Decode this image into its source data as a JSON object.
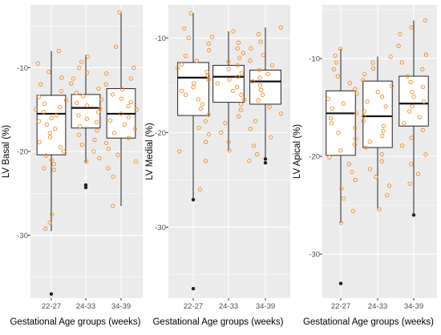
{
  "chart_data": [
    {
      "type": "box",
      "ylabel": "LV Basal (%)",
      "xlabel": "Gestational Age groups (weeks)",
      "categories": [
        "22-27",
        "24-33",
        "34-39"
      ],
      "y_ticks": [
        -10,
        -20,
        -30
      ],
      "ylim": [
        -37.5,
        -2.5
      ],
      "boxes": [
        {
          "whisker_low": -29.5,
          "q1": -20.4,
          "median": -15.5,
          "q3": -13.3,
          "whisker_high": -8.0,
          "outliers": [
            -37.0
          ]
        },
        {
          "whisker_low": -21.3,
          "q1": -17.2,
          "median": -14.8,
          "q3": -13.2,
          "whisker_high": -8.5,
          "outliers": [
            -24.0,
            -24.3
          ]
        },
        {
          "whisker_low": -26.5,
          "q1": -18.4,
          "median": -15.5,
          "q3": -12.5,
          "whisker_high": -3.4,
          "outliers": []
        }
      ],
      "points": [
        [
          -8.0,
          -9.5,
          -10.5,
          -11.2,
          -12.0,
          -12.8,
          -13.5,
          -13.9,
          -14.3,
          -14.7,
          -15.0,
          -15.3,
          -15.7,
          -16.0,
          -16.4,
          -16.8,
          -17.3,
          -17.8,
          -18.3,
          -18.9,
          -19.5,
          -20.0,
          -20.5,
          -21.0,
          -21.5,
          -22.0,
          -22.2,
          -27.5,
          -28.5,
          -29.2
        ],
        [
          -8.7,
          -9.3,
          -10.0,
          -10.6,
          -11.3,
          -11.9,
          -12.5,
          -13.0,
          -13.4,
          -13.8,
          -14.2,
          -14.5,
          -14.9,
          -15.3,
          -15.7,
          -16.1,
          -16.5,
          -17.0,
          -17.5,
          -18.0,
          -18.6,
          -19.2,
          -20.0,
          -20.8,
          -21.2
        ],
        [
          -3.4,
          -7.5,
          -10.0,
          -10.7,
          -11.3,
          -12.0,
          -12.6,
          -13.2,
          -13.7,
          -14.1,
          -14.6,
          -15.0,
          -15.5,
          -15.9,
          -16.3,
          -16.8,
          -17.3,
          -17.8,
          -18.4,
          -19.0,
          -19.7,
          -20.4,
          -21.2,
          -22.0,
          -23.0,
          -26.5
        ]
      ]
    },
    {
      "type": "box",
      "ylabel": "LV Medial (%)",
      "xlabel": "Gestational Age groups (weeks)",
      "categories": [
        "22-27",
        "24-33",
        "34-39"
      ],
      "y_ticks": [
        -10,
        -20,
        -30
      ],
      "ylim": [
        -37.5,
        -6.5
      ],
      "boxes": [
        {
          "whisker_low": -27.1,
          "q1": -18.2,
          "median": -14.2,
          "q3": -12.6,
          "whisker_high": -7.4,
          "outliers": [
            -27.1,
            -36.5
          ]
        },
        {
          "whisker_low": -21.9,
          "q1": -16.8,
          "median": -14.1,
          "q3": -12.9,
          "whisker_high": -9.3,
          "outliers": []
        },
        {
          "whisker_low": -22.8,
          "q1": -17.0,
          "median": -14.6,
          "q3": -13.4,
          "whisker_high": -8.9,
          "outliers": [
            -22.8,
            -23.2
          ]
        }
      ],
      "points": [
        [
          -7.4,
          -9.0,
          -10.0,
          -10.6,
          -11.3,
          -11.9,
          -12.4,
          -12.8,
          -13.2,
          -13.6,
          -14.0,
          -14.4,
          -14.8,
          -15.2,
          -15.6,
          -16.0,
          -16.5,
          -17.0,
          -17.5,
          -18.1,
          -18.8,
          -19.5,
          -20.2,
          -21.0,
          -22.0,
          -23.0,
          -26.0
        ],
        [
          -9.3,
          -9.9,
          -10.5,
          -11.1,
          -11.6,
          -12.1,
          -12.5,
          -12.9,
          -13.3,
          -13.7,
          -14.1,
          -14.4,
          -14.8,
          -15.2,
          -15.6,
          -16.0,
          -16.5,
          -17.0,
          -17.6,
          -18.3,
          -19.0,
          -20.0,
          -21.0,
          -21.9
        ],
        [
          -8.9,
          -9.6,
          -10.4,
          -11.1,
          -11.8,
          -12.4,
          -12.9,
          -13.4,
          -13.8,
          -14.2,
          -14.6,
          -15.0,
          -15.5,
          -16.0,
          -16.6,
          -17.3,
          -18.0,
          -18.8,
          -19.6,
          -20.5,
          -21.4,
          -22.3,
          -23.0
        ]
      ]
    },
    {
      "type": "box",
      "ylabel": "LV Apical (%)",
      "xlabel": "Gestational Age groups (weeks)",
      "categories": [
        "22-27",
        "24-33",
        "34-39"
      ],
      "y_ticks": [
        -10,
        -20,
        -30
      ],
      "ylim": [
        -34.5,
        -4.5
      ],
      "boxes": [
        {
          "whisker_low": -26.8,
          "q1": -19.9,
          "median": -15.6,
          "q3": -13.3,
          "whisker_high": -9.0,
          "outliers": [
            -33.0
          ]
        },
        {
          "whisker_low": -25.4,
          "q1": -19.1,
          "median": -15.9,
          "q3": -12.3,
          "whisker_high": -9.8,
          "outliers": []
        },
        {
          "whisker_low": -26.0,
          "q1": -16.9,
          "median": -14.6,
          "q3": -11.8,
          "whisker_high": -6.1,
          "outliers": [
            -26.0
          ]
        }
      ],
      "points": [
        [
          -9.0,
          -9.7,
          -10.4,
          -11.1,
          -11.8,
          -12.5,
          -13.1,
          -13.6,
          -14.1,
          -14.6,
          -15.1,
          -15.6,
          -16.1,
          -16.6,
          -17.1,
          -17.6,
          -18.2,
          -18.8,
          -19.4,
          -20.1,
          -20.8,
          -21.6,
          -22.4,
          -23.3,
          -24.3,
          -25.6,
          -26.8
        ],
        [
          -9.8,
          -10.4,
          -11.0,
          -11.6,
          -12.2,
          -12.8,
          -13.4,
          -13.9,
          -14.4,
          -14.9,
          -15.4,
          -15.9,
          -16.4,
          -16.9,
          -17.4,
          -17.9,
          -18.5,
          -19.1,
          -19.8,
          -20.5,
          -21.3,
          -22.1,
          -23.0,
          -24.0,
          -25.4
        ],
        [
          -6.1,
          -6.8,
          -7.5,
          -8.7,
          -9.6,
          -10.4,
          -11.1,
          -11.8,
          -12.4,
          -12.9,
          -13.4,
          -13.9,
          -14.4,
          -14.9,
          -15.4,
          -16.0,
          -16.6,
          -17.3,
          -18.1,
          -18.9,
          -19.8,
          -20.8,
          -21.8,
          -22.8
        ]
      ]
    }
  ],
  "colors": {
    "panel": "#ebebeb",
    "grid": "#ffffff",
    "point": "#f28e2b",
    "outlier": "#222222",
    "axis_text": "#4d4d4d",
    "title_text": "#000000"
  }
}
